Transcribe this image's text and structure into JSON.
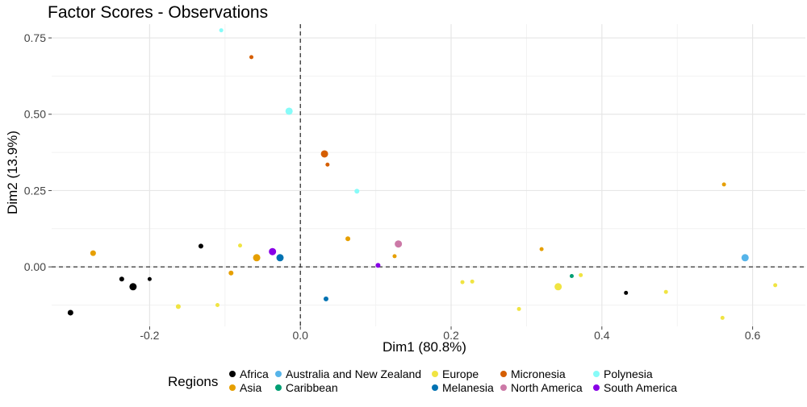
{
  "chart_data": {
    "type": "scatter",
    "title": "Factor Scores - Observations",
    "xlabel": "Dim1 (80.8%)",
    "ylabel": "Dim2 (13.9%)",
    "xlim": [
      -0.33,
      0.67
    ],
    "ylim": [
      -0.195,
      0.795
    ],
    "x_ticks": [
      -0.2,
      0.0,
      0.2,
      0.4,
      0.6
    ],
    "x_tick_labels": [
      "-0.2",
      "0.0",
      "0.2",
      "0.4",
      "0.6"
    ],
    "y_ticks": [
      0.0,
      0.25,
      0.5,
      0.75
    ],
    "y_tick_labels": [
      "0.00",
      "0.25",
      "0.50",
      "0.75"
    ],
    "reference_lines": {
      "x": 0,
      "y": 0,
      "style": "dashed"
    },
    "grid": true,
    "legend": {
      "title": "Regions",
      "position": "bottom",
      "entries": [
        {
          "name": "Africa",
          "color": "#000000"
        },
        {
          "name": "Asia",
          "color": "#E69F00"
        },
        {
          "name": "Australia and New Zealand",
          "color": "#56B4E9"
        },
        {
          "name": "Caribbean",
          "color": "#009E73"
        },
        {
          "name": "Europe",
          "color": "#F0E442"
        },
        {
          "name": "Melanesia",
          "color": "#0072B2"
        },
        {
          "name": "Micronesia",
          "color": "#D55E00"
        },
        {
          "name": "North America",
          "color": "#CC79A7"
        },
        {
          "name": "Polynesia",
          "color": "#87FBF8"
        },
        {
          "name": "South America",
          "color": "#8800E6"
        }
      ]
    },
    "series": [
      {
        "name": "Africa",
        "color": "#000000",
        "points": [
          {
            "x": -0.305,
            "y": -0.15,
            "size": 2
          },
          {
            "x": -0.237,
            "y": -0.04,
            "size": 1.5
          },
          {
            "x": -0.222,
            "y": -0.065,
            "size": 3
          },
          {
            "x": -0.2,
            "y": -0.04,
            "size": 1
          },
          {
            "x": -0.132,
            "y": 0.068,
            "size": 1.5
          },
          {
            "x": 0.432,
            "y": -0.085,
            "size": 1
          }
        ]
      },
      {
        "name": "Asia",
        "color": "#E69F00",
        "points": [
          {
            "x": -0.275,
            "y": 0.045,
            "size": 2
          },
          {
            "x": -0.092,
            "y": -0.02,
            "size": 1.5
          },
          {
            "x": -0.058,
            "y": 0.03,
            "size": 3
          },
          {
            "x": 0.063,
            "y": 0.092,
            "size": 1.5
          },
          {
            "x": 0.125,
            "y": 0.035,
            "size": 1
          },
          {
            "x": 0.32,
            "y": 0.058,
            "size": 1
          },
          {
            "x": 0.562,
            "y": 0.27,
            "size": 1
          }
        ]
      },
      {
        "name": "Australia and New Zealand",
        "color": "#56B4E9",
        "points": [
          {
            "x": 0.59,
            "y": 0.03,
            "size": 3
          }
        ]
      },
      {
        "name": "Caribbean",
        "color": "#009E73",
        "points": [
          {
            "x": 0.36,
            "y": -0.03,
            "size": 1
          }
        ]
      },
      {
        "name": "Europe",
        "color": "#F0E442",
        "points": [
          {
            "x": -0.162,
            "y": -0.13,
            "size": 1.5
          },
          {
            "x": -0.11,
            "y": -0.125,
            "size": 1
          },
          {
            "x": -0.08,
            "y": 0.07,
            "size": 1
          },
          {
            "x": 0.215,
            "y": -0.05,
            "size": 1
          },
          {
            "x": 0.228,
            "y": -0.048,
            "size": 1
          },
          {
            "x": 0.29,
            "y": -0.138,
            "size": 1
          },
          {
            "x": 0.342,
            "y": -0.065,
            "size": 3
          },
          {
            "x": 0.372,
            "y": -0.027,
            "size": 1
          },
          {
            "x": 0.485,
            "y": -0.082,
            "size": 1
          },
          {
            "x": 0.56,
            "y": -0.167,
            "size": 1
          },
          {
            "x": 0.63,
            "y": -0.06,
            "size": 1
          }
        ]
      },
      {
        "name": "Melanesia",
        "color": "#0072B2",
        "points": [
          {
            "x": -0.027,
            "y": 0.03,
            "size": 3
          },
          {
            "x": 0.034,
            "y": -0.105,
            "size": 1.5
          }
        ]
      },
      {
        "name": "Micronesia",
        "color": "#D55E00",
        "points": [
          {
            "x": -0.065,
            "y": 0.687,
            "size": 1
          },
          {
            "x": 0.032,
            "y": 0.37,
            "size": 3
          },
          {
            "x": 0.036,
            "y": 0.335,
            "size": 1
          }
        ]
      },
      {
        "name": "North America",
        "color": "#CC79A7",
        "points": [
          {
            "x": 0.13,
            "y": 0.075,
            "size": 3
          }
        ]
      },
      {
        "name": "Polynesia",
        "color": "#87FBF8",
        "points": [
          {
            "x": -0.105,
            "y": 0.775,
            "size": 1
          },
          {
            "x": -0.015,
            "y": 0.51,
            "size": 3
          },
          {
            "x": 0.075,
            "y": 0.248,
            "size": 1.5
          }
        ]
      },
      {
        "name": "South America",
        "color": "#8800E6",
        "points": [
          {
            "x": -0.037,
            "y": 0.05,
            "size": 3
          },
          {
            "x": 0.103,
            "y": 0.005,
            "size": 1.5
          }
        ]
      }
    ]
  }
}
